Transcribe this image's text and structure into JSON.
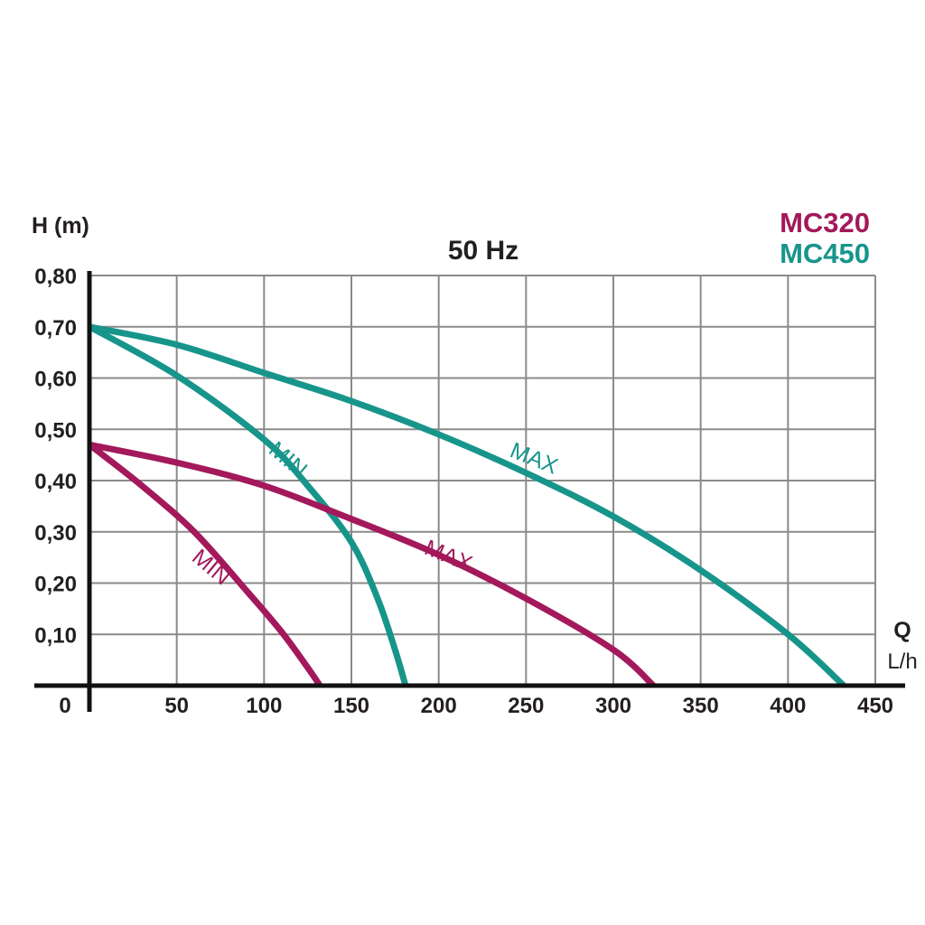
{
  "chart_data": {
    "type": "line",
    "title": "50 Hz",
    "ylabel": "H (m)",
    "xlabel": "Q",
    "xunit": "L/h",
    "xlim": [
      0,
      450
    ],
    "ylim": [
      0,
      0.8
    ],
    "x_ticks": [
      {
        "value": 0,
        "label": "0"
      },
      {
        "value": 50,
        "label": "50"
      },
      {
        "value": 100,
        "label": "100"
      },
      {
        "value": 150,
        "label": "150"
      },
      {
        "value": 200,
        "label": "200"
      },
      {
        "value": 250,
        "label": "250"
      },
      {
        "value": 300,
        "label": "300"
      },
      {
        "value": 350,
        "label": "350"
      },
      {
        "value": 400,
        "label": "400"
      },
      {
        "value": 450,
        "label": "450"
      }
    ],
    "y_ticks": [
      {
        "value": 0.1,
        "label": "0,10"
      },
      {
        "value": 0.2,
        "label": "0,20"
      },
      {
        "value": 0.3,
        "label": "0,30"
      },
      {
        "value": 0.4,
        "label": "0,40"
      },
      {
        "value": 0.5,
        "label": "0,50"
      },
      {
        "value": 0.6,
        "label": "0,60"
      },
      {
        "value": 0.7,
        "label": "0,70"
      },
      {
        "value": 0.8,
        "label": "0,80"
      }
    ],
    "grid": true,
    "legend": {
      "placement": "top-right",
      "entries": [
        {
          "label": "MC320",
          "color": "#a3195b"
        },
        {
          "label": "MC450",
          "color": "#17958b"
        }
      ]
    },
    "series": [
      {
        "model": "MC450",
        "label": "MAX",
        "color": "#17958b",
        "label_at": {
          "x": 253,
          "y": 0.43,
          "angle": 22
        },
        "points": [
          [
            0,
            0.7
          ],
          [
            50,
            0.665
          ],
          [
            100,
            0.61
          ],
          [
            150,
            0.555
          ],
          [
            200,
            0.49
          ],
          [
            250,
            0.415
          ],
          [
            300,
            0.33
          ],
          [
            350,
            0.225
          ],
          [
            400,
            0.1
          ],
          [
            432,
            0.0
          ]
        ]
      },
      {
        "model": "MC450",
        "label": "MIN",
        "color": "#17958b",
        "label_at": {
          "x": 111,
          "y": 0.43,
          "angle": 40
        },
        "points": [
          [
            0,
            0.7
          ],
          [
            50,
            0.605
          ],
          [
            100,
            0.48
          ],
          [
            125,
            0.39
          ],
          [
            150,
            0.28
          ],
          [
            165,
            0.17
          ],
          [
            175,
            0.07
          ],
          [
            181,
            0.0
          ]
        ]
      },
      {
        "model": "MC320",
        "label": "MAX",
        "color": "#a3195b",
        "label_at": {
          "x": 204,
          "y": 0.24,
          "angle": 22
        },
        "points": [
          [
            0,
            0.47
          ],
          [
            50,
            0.435
          ],
          [
            100,
            0.39
          ],
          [
            150,
            0.325
          ],
          [
            200,
            0.255
          ],
          [
            250,
            0.17
          ],
          [
            300,
            0.07
          ],
          [
            323,
            0.0
          ]
        ]
      },
      {
        "model": "MC320",
        "label": "MIN",
        "color": "#a3195b",
        "label_at": {
          "x": 67,
          "y": 0.22,
          "angle": 40
        },
        "points": [
          [
            0,
            0.47
          ],
          [
            30,
            0.39
          ],
          [
            60,
            0.3
          ],
          [
            90,
            0.185
          ],
          [
            110,
            0.105
          ],
          [
            125,
            0.035
          ],
          [
            132,
            0.0
          ]
        ]
      }
    ]
  }
}
